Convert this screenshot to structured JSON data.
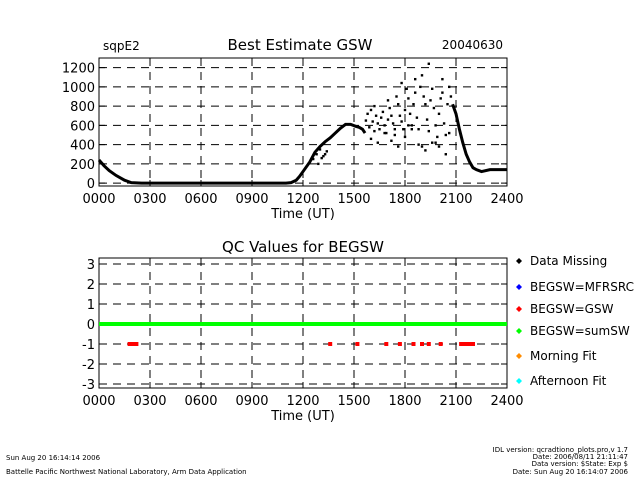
{
  "chart_data": [
    {
      "type": "scatter",
      "site": "sqpE2",
      "title": "Best Estimate GSW",
      "date": "20040630",
      "xlabel": "Time (UT)",
      "ylabel": "",
      "xlim": [
        0,
        24
      ],
      "ylim": [
        -30,
        1300
      ],
      "x_ticks": [
        0,
        3,
        6,
        9,
        12,
        15,
        18,
        21,
        24
      ],
      "x_tick_labels": [
        "0000",
        "0300",
        "0600",
        "0900",
        "1200",
        "1500",
        "1800",
        "2100",
        "2400"
      ],
      "y_ticks": [
        0,
        200,
        400,
        600,
        800,
        1000,
        1200
      ],
      "y_tick_labels": [
        "0",
        "200",
        "400",
        "600",
        "800",
        "1000",
        "1200"
      ],
      "grid": "dashed",
      "curve": {
        "x": [
          0,
          0.3,
          0.6,
          1.0,
          1.5,
          1.9,
          2.5,
          5,
          8,
          11,
          11.3,
          11.6,
          11.8,
          12.0,
          12.4,
          12.7,
          13.0,
          13.3,
          13.6,
          13.9,
          14.2,
          14.5,
          14.8,
          15.1,
          15.3,
          15.5,
          15.65
        ],
        "y": [
          240,
          180,
          130,
          80,
          30,
          5,
          0,
          0,
          0,
          0,
          5,
          30,
          70,
          120,
          220,
          320,
          380,
          430,
          470,
          520,
          570,
          610,
          610,
          590,
          580,
          560,
          520
        ]
      },
      "curve_tail": {
        "x": [
          20.8,
          21.0,
          21.2,
          21.4,
          21.6,
          21.8,
          22.0,
          22.2,
          22.5,
          23.0,
          23.5,
          24.0
        ],
        "y": [
          820,
          720,
          560,
          420,
          300,
          220,
          160,
          140,
          120,
          140,
          140,
          140
        ]
      },
      "scatter": {
        "x": [
          12.6,
          12.8,
          13.0,
          13.2,
          13.4,
          12.9,
          13.1,
          13.3,
          15.7,
          15.8,
          15.9,
          16.0,
          16.1,
          16.2,
          16.3,
          16.4,
          16.5,
          16.6,
          16.7,
          16.8,
          16.9,
          17.0,
          17.1,
          17.2,
          17.3,
          17.4,
          17.5,
          17.6,
          17.7,
          17.8,
          17.9,
          18.0,
          18.1,
          18.2,
          18.3,
          18.4,
          18.5,
          18.6,
          18.7,
          18.8,
          18.9,
          19.0,
          19.1,
          19.2,
          19.3,
          19.4,
          19.5,
          19.6,
          19.7,
          19.8,
          19.9,
          20.0,
          20.1,
          20.2,
          20.3,
          20.4,
          20.5,
          20.6,
          20.7,
          16.0,
          16.4,
          16.8,
          17.2,
          17.6,
          18.0,
          18.4,
          18.8,
          19.2,
          19.6,
          20.0,
          20.4,
          16.2,
          17.0,
          17.8,
          18.6,
          19.4,
          20.2,
          19.0,
          19.8,
          20.6,
          17.4,
          18.2
        ],
        "y": [
          250,
          300,
          350,
          280,
          330,
          200,
          260,
          300,
          650,
          720,
          580,
          760,
          640,
          540,
          700,
          620,
          560,
          680,
          740,
          600,
          520,
          660,
          780,
          700,
          620,
          560,
          900,
          820,
          700,
          640,
          560,
          760,
          980,
          880,
          720,
          600,
          820,
          940,
          680,
          560,
          1000,
          1120,
          900,
          820,
          660,
          540,
          860,
          980,
          780,
          600,
          480,
          720,
          880,
          940,
          620,
          500,
          820,
          1000,
          900,
          460,
          420,
          520,
          440,
          380,
          480,
          560,
          400,
          340,
          420,
          380,
          300,
          800,
          860,
          1040,
          1080,
          1240,
          1080,
          380,
          420,
          520,
          500,
          600
        ]
      }
    },
    {
      "type": "scatter",
      "title": "QC Values for BEGSW",
      "xlabel": "Time (UT)",
      "ylabel": "",
      "xlim": [
        0,
        24
      ],
      "ylim": [
        -3.2,
        3.3
      ],
      "x_ticks": [
        0,
        3,
        6,
        9,
        12,
        15,
        18,
        21,
        24
      ],
      "x_tick_labels": [
        "0000",
        "0300",
        "0600",
        "0900",
        "1200",
        "1500",
        "1800",
        "2100",
        "2400"
      ],
      "y_ticks": [
        -3,
        -2,
        -1,
        0,
        1,
        2,
        3
      ],
      "y_tick_labels": [
        "-3",
        "-2",
        "-1",
        "0",
        "1",
        "2",
        "3"
      ],
      "grid": "dashed",
      "series": [
        {
          "name": "BEGSW=sumSW",
          "color": "#00ff00",
          "x": [
            0,
            24
          ],
          "y": [
            0,
            0
          ]
        },
        {
          "name": "BEGSW=GSW",
          "color": "#ff0000",
          "x": [
            1.8,
            1.9,
            2.0,
            2.1,
            2.2,
            13.6,
            15.2,
            16.9,
            17.7,
            18.5,
            19.0,
            19.4,
            20.1,
            21.3,
            21.5,
            21.6,
            21.7,
            21.8,
            22.0
          ],
          "y": [
            -1,
            -1,
            -1,
            -1,
            -1,
            -1,
            -1,
            -1,
            -1,
            -1,
            -1,
            -1,
            -1,
            -1,
            -1,
            -1,
            -1,
            -1,
            -1
          ]
        }
      ],
      "legend": {
        "placement": "right",
        "entries": [
          {
            "label": "Data Missing",
            "color": "#000000"
          },
          {
            "label": "BEGSW=MFRSRC",
            "color": "#0000ff"
          },
          {
            "label": "BEGSW=GSW",
            "color": "#ff0000"
          },
          {
            "label": "BEGSW=sumSW",
            "color": "#00ff00"
          },
          {
            "label": "Morning Fit",
            "color": "#ff8c00"
          },
          {
            "label": "Afternoon Fit",
            "color": "#00ffff"
          }
        ]
      }
    }
  ],
  "footer": {
    "left_line1": "Sun Aug 20 16:14:14 2006",
    "left_line2": "Battelle Pacific Northwest National Laboratory, Arm Data Application",
    "right_lines": [
      "IDL version: qcradtiono_plots.pro,v 1.7",
      "Date: 2006/08/11 21:11:47",
      "Data version: $State: Exp $",
      "Date: Sun Aug 20 16:14:07 2006"
    ]
  }
}
